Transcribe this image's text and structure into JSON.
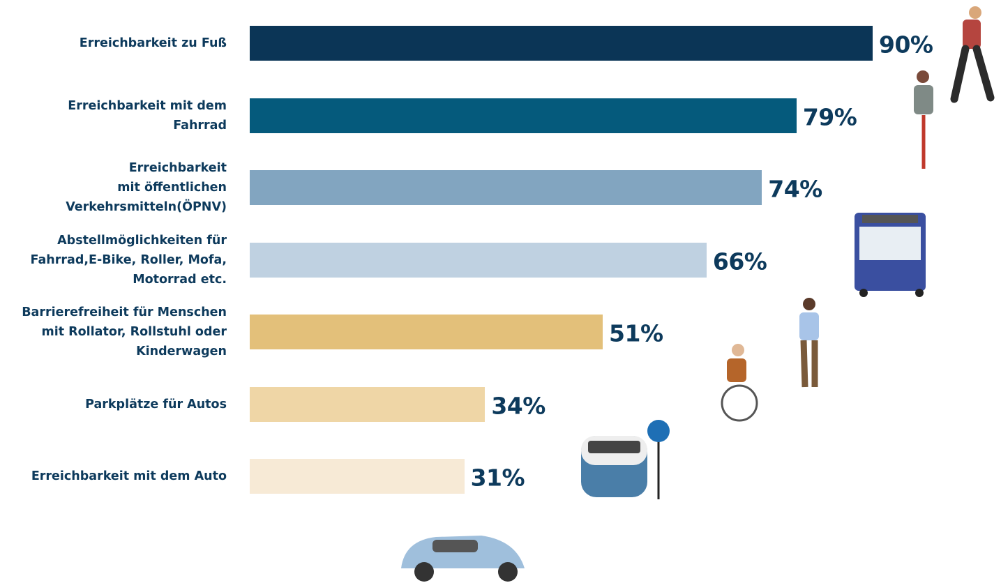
{
  "chart_data": {
    "type": "bar",
    "orientation": "horizontal",
    "categories": [
      "Erreichbarkeit zu Fuß",
      "Erreichbarkeit mit dem\nFahrrad",
      "Erreichbarkeit\nmit öffentlichen\nVerkehrsmitteln(ÖPNV)",
      "Abstellmöglichkeiten für\nFahrrad,E-Bike, Roller, Mofa,\nMotorrad etc.",
      "Barrierefreiheit für Menschen\nmit Rollator, Rollstuhl oder\nKinderwagen",
      "Parkplätze für Autos",
      "Erreichbarkeit mit dem Auto"
    ],
    "values": [
      90,
      79,
      74,
      66,
      51,
      34,
      31
    ],
    "value_labels": [
      "90%",
      "79%",
      "74%",
      "66%",
      "51%",
      "34%",
      "31%"
    ],
    "colors": [
      "#0b3556",
      "#055a7c",
      "#82a5c0",
      "#bfd1e1",
      "#e3c07a",
      "#efd6a6",
      "#f7ead6"
    ]
  }
}
